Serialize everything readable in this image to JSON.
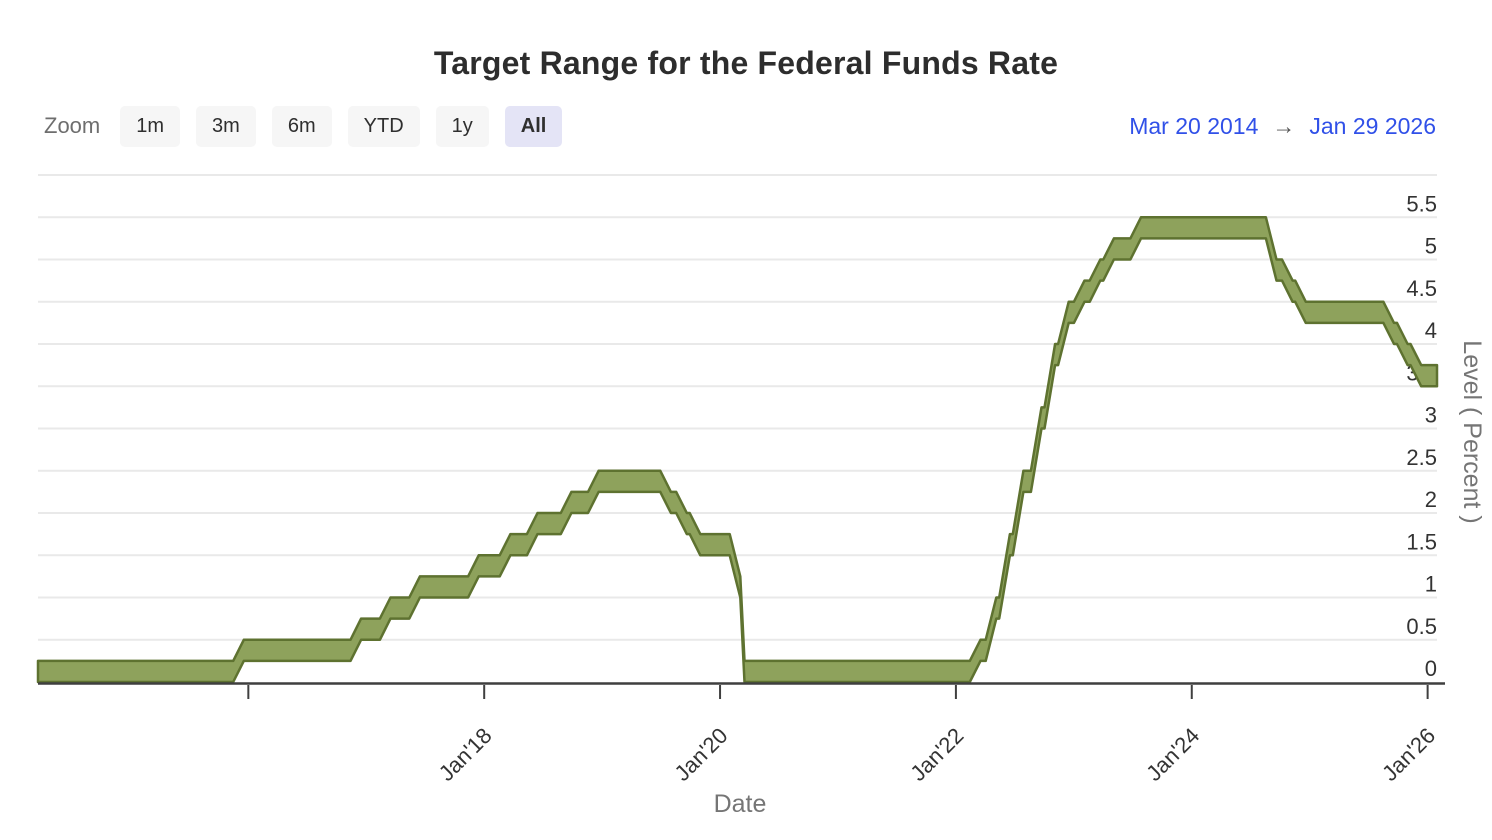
{
  "page": {
    "title": "Target Range for the Federal Funds Rate"
  },
  "toolbar": {
    "zoom_label": "Zoom",
    "buttons": [
      {
        "label": "1m",
        "active": false
      },
      {
        "label": "3m",
        "active": false
      },
      {
        "label": "6m",
        "active": false
      },
      {
        "label": "YTD",
        "active": false
      },
      {
        "label": "1y",
        "active": false
      },
      {
        "label": "All",
        "active": true
      }
    ]
  },
  "range_selector": {
    "from": "Mar 20 2014",
    "arrow": "→",
    "to": "Jan 29 2026"
  },
  "chart_data": {
    "type": "arearange",
    "title": "Target Range for the Federal Funds Rate",
    "xlabel": "Date",
    "ylabel": "Level ( Percent )",
    "ylim": [
      0,
      6
    ],
    "grid": true,
    "x_domain_decimal_years": [
      2014.2164,
      2026.0795
    ],
    "yticks": [
      {
        "value": 0,
        "label": "0"
      },
      {
        "value": 0.5,
        "label": "0.5"
      },
      {
        "value": 1,
        "label": "1"
      },
      {
        "value": 1.5,
        "label": "1.5"
      },
      {
        "value": 2,
        "label": "2"
      },
      {
        "value": 2.5,
        "label": "2.5"
      },
      {
        "value": 3,
        "label": "3"
      },
      {
        "value": 3.5,
        "label": "3.5"
      },
      {
        "value": 4,
        "label": "4"
      },
      {
        "value": 4.5,
        "label": "4.5"
      },
      {
        "value": 5,
        "label": "5"
      },
      {
        "value": 5.5,
        "label": "5.5"
      },
      {
        "value": 6,
        "label": ""
      }
    ],
    "xticks": [
      {
        "t": 2016.0,
        "label": ""
      },
      {
        "t": 2018.0,
        "label": "Jan'18"
      },
      {
        "t": 2020.0,
        "label": "Jan'20"
      },
      {
        "t": 2022.0,
        "label": "Jan'22"
      },
      {
        "t": 2024.0,
        "label": "Jan'24"
      },
      {
        "t": 2026.0,
        "label": "Jan'26"
      }
    ],
    "transition_years": 0.09,
    "events": [
      {
        "date": "Mar 20 2014",
        "t": 2014.2164,
        "low": 0,
        "high": 0.25
      },
      {
        "date": "Dec 17 2015",
        "t": 2015.9616,
        "low": 0.25,
        "high": 0.5
      },
      {
        "date": "Dec 15 2016",
        "t": 2016.9563,
        "low": 0.5,
        "high": 0.75
      },
      {
        "date": "Mar 16 2017",
        "t": 2017.2055,
        "low": 0.75,
        "high": 1.0
      },
      {
        "date": "Jun 15 2017",
        "t": 2017.4548,
        "low": 1.0,
        "high": 1.25
      },
      {
        "date": "Dec 14 2017",
        "t": 2017.9534,
        "low": 1.25,
        "high": 1.5
      },
      {
        "date": "Mar 22 2018",
        "t": 2018.2219,
        "low": 1.5,
        "high": 1.75
      },
      {
        "date": "Jun 14 2018",
        "t": 2018.4521,
        "low": 1.75,
        "high": 2.0
      },
      {
        "date": "Sep 27 2018",
        "t": 2018.7397,
        "low": 2.0,
        "high": 2.25
      },
      {
        "date": "Dec 20 2018",
        "t": 2018.9699,
        "low": 2.25,
        "high": 2.5
      },
      {
        "date": "Aug 1 2019",
        "t": 2019.5836,
        "low": 2.0,
        "high": 2.25
      },
      {
        "date": "Sep 19 2019",
        "t": 2019.7178,
        "low": 1.75,
        "high": 2.0
      },
      {
        "date": "Oct 31 2019",
        "t": 2019.8329,
        "low": 1.5,
        "high": 1.75
      },
      {
        "date": "Mar 3 2020",
        "t": 2020.1721,
        "low": 1.0,
        "high": 1.25
      },
      {
        "date": "Mar 16 2020",
        "t": 2020.2077,
        "low": 0,
        "high": 0.25
      },
      {
        "date": "Mar 17 2022",
        "t": 2022.2082,
        "low": 0.25,
        "high": 0.5
      },
      {
        "date": "May 5 2022",
        "t": 2022.3425,
        "low": 0.75,
        "high": 1.0
      },
      {
        "date": "Jun 16 2022",
        "t": 2022.4575,
        "low": 1.5,
        "high": 1.75
      },
      {
        "date": "Jul 28 2022",
        "t": 2022.5726,
        "low": 2.25,
        "high": 2.5
      },
      {
        "date": "Sep 22 2022",
        "t": 2022.726,
        "low": 3.0,
        "high": 3.25
      },
      {
        "date": "Nov 3 2022",
        "t": 2022.8411,
        "low": 3.75,
        "high": 4.0
      },
      {
        "date": "Dec 15 2022",
        "t": 2022.9562,
        "low": 4.25,
        "high": 4.5
      },
      {
        "date": "Feb 2 2023",
        "t": 2023.0904,
        "low": 4.5,
        "high": 4.75
      },
      {
        "date": "Mar 23 2023",
        "t": 2023.2247,
        "low": 4.75,
        "high": 5.0
      },
      {
        "date": "May 4 2023",
        "t": 2023.3397,
        "low": 5.0,
        "high": 5.25
      },
      {
        "date": "Jul 27 2023",
        "t": 2023.5699,
        "low": 5.25,
        "high": 5.5
      },
      {
        "date": "Sep 19 2024",
        "t": 2024.7186,
        "low": 4.75,
        "high": 5.0
      },
      {
        "date": "Nov 8 2024",
        "t": 2024.8552,
        "low": 4.5,
        "high": 4.75
      },
      {
        "date": "Dec 19 2024",
        "t": 2024.9672,
        "low": 4.25,
        "high": 4.5
      },
      {
        "date": "Sep 18 2025",
        "t": 2025.7151,
        "low": 4.0,
        "high": 4.25
      },
      {
        "date": "Oct 30 2025",
        "t": 2025.8301,
        "low": 3.75,
        "high": 4.0
      },
      {
        "date": "Dec 11 2025",
        "t": 2025.9452,
        "low": 3.5,
        "high": 3.75
      },
      {
        "date": "Jan 29 2026",
        "t": 2026.0795,
        "low": 3.5,
        "high": 3.75
      }
    ],
    "colors": {
      "band_fill": "#8ea25c",
      "band_stroke": "#5e7230",
      "grid": "#e9e9e9",
      "axis": "#3f3f3f",
      "tick_label": "#333333",
      "axis_title": "#757575",
      "accent_link": "#3050e8",
      "button_bg": "#f6f6f6",
      "button_active_bg": "#e4e4f6"
    }
  }
}
